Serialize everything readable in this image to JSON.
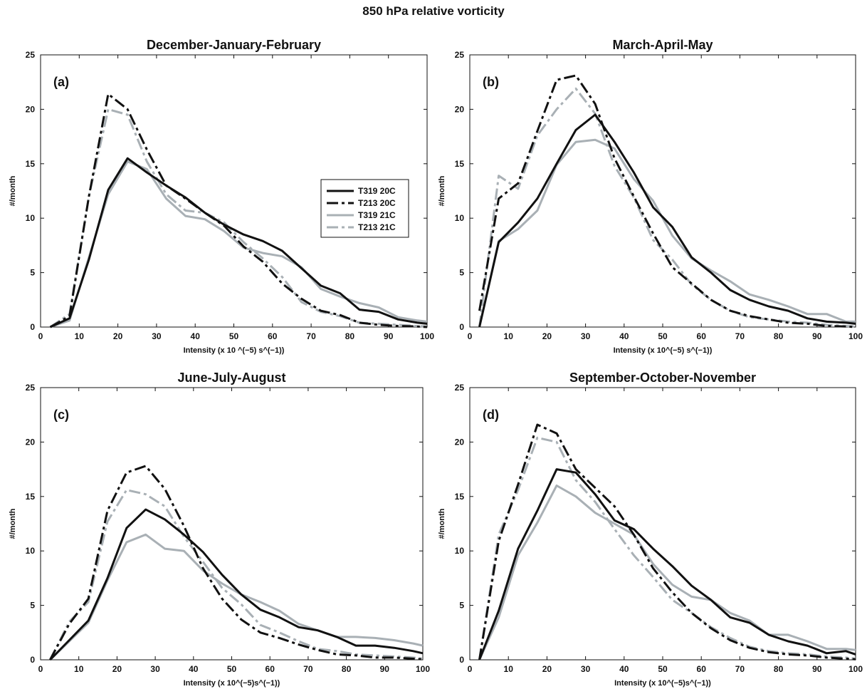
{
  "figure": {
    "title": "850 hPa relative vorticity"
  },
  "colors": {
    "dark": "#111111",
    "light": "#a9b0b5"
  },
  "legend": [
    {
      "name": "T319 20C",
      "color": "#111111",
      "dash": "solid"
    },
    {
      "name": "T213 20C",
      "color": "#111111",
      "dash": "dashdot"
    },
    {
      "name": "T319 21C",
      "color": "#a9b0b5",
      "dash": "solid"
    },
    {
      "name": "T213 21C",
      "color": "#a9b0b5",
      "dash": "dashdot"
    }
  ],
  "chart_data": [
    {
      "type": "line",
      "title": "December-January-February",
      "panel_label": "(a)",
      "xlabel": "Intensity (x 10 ^(−5) s^(−1))",
      "ylabel": "#/month",
      "xlim": [
        0,
        100
      ],
      "ylim": [
        0,
        25
      ],
      "xticks": [
        0,
        10,
        20,
        30,
        40,
        50,
        60,
        70,
        80,
        90,
        100
      ],
      "yticks": [
        0,
        5,
        10,
        15,
        20,
        25
      ],
      "legend_location": "right-middle",
      "x": [
        2.5,
        7.5,
        12.5,
        17.5,
        22.5,
        27.5,
        32.5,
        37.5,
        42.5,
        47.5,
        52.5,
        57.5,
        62.5,
        67.5,
        72.5,
        77.5,
        82.5,
        87.5,
        92.5,
        97.5,
        100
      ],
      "series": [
        {
          "name": "T319 20C",
          "values": [
            0,
            0.8,
            6.2,
            12.6,
            15.5,
            14.2,
            13.0,
            11.9,
            10.5,
            9.4,
            8.5,
            7.9,
            7.0,
            5.4,
            3.8,
            3.1,
            1.6,
            1.4,
            0.7,
            0.4,
            0.3
          ]
        },
        {
          "name": "T213 20C",
          "values": [
            0,
            1.0,
            12.0,
            21.4,
            20.0,
            16.3,
            13.0,
            11.8,
            10.5,
            9.3,
            7.4,
            6.0,
            4.0,
            2.6,
            1.5,
            1.1,
            0.4,
            0.2,
            0.1,
            0.05,
            0.0
          ]
        },
        {
          "name": "T319 21C",
          "values": [
            0,
            0.6,
            6.4,
            12.2,
            15.2,
            14.5,
            11.8,
            10.2,
            9.9,
            8.8,
            7.3,
            6.8,
            6.5,
            5.5,
            3.5,
            2.8,
            2.2,
            1.8,
            0.9,
            0.6,
            0.5
          ]
        },
        {
          "name": "T213 21C",
          "values": [
            0,
            1.2,
            12.0,
            20.0,
            19.5,
            15.2,
            12.2,
            10.7,
            10.5,
            9.6,
            7.8,
            6.3,
            4.6,
            2.3,
            1.4,
            1.0,
            0.4,
            0.3,
            0.2,
            0.1,
            0.05
          ]
        }
      ]
    },
    {
      "type": "line",
      "title": "March-April-May",
      "panel_label": "(b)",
      "xlabel": "Intensity (x 10^(−5) s^(−1))",
      "ylabel": "#/month",
      "xlim": [
        0,
        100
      ],
      "ylim": [
        0,
        25
      ],
      "xticks": [
        0,
        10,
        20,
        30,
        40,
        50,
        60,
        70,
        80,
        90,
        100
      ],
      "yticks": [
        0,
        5,
        10,
        15,
        20,
        25
      ],
      "x": [
        2.5,
        7.5,
        12.5,
        17.5,
        22.5,
        27.5,
        32.5,
        37.5,
        42.5,
        47.5,
        52.5,
        57.5,
        62.5,
        67.5,
        72.5,
        77.5,
        82.5,
        87.5,
        92.5,
        97.5,
        100
      ],
      "series": [
        {
          "name": "T319 20C",
          "values": [
            0,
            7.8,
            9.6,
            11.8,
            15.0,
            18.1,
            19.5,
            17.0,
            14.2,
            11.0,
            9.2,
            6.4,
            5.0,
            3.4,
            2.5,
            1.9,
            1.5,
            0.8,
            0.5,
            0.4,
            0.3
          ]
        },
        {
          "name": "T213 20C",
          "values": [
            1.5,
            11.8,
            13.2,
            18.0,
            22.7,
            23.1,
            20.5,
            15.5,
            12.0,
            8.6,
            5.5,
            4.0,
            2.5,
            1.5,
            1.0,
            0.7,
            0.4,
            0.3,
            0.1,
            0.05,
            0.0
          ]
        },
        {
          "name": "T319 21C",
          "values": [
            0,
            7.9,
            9.0,
            10.7,
            14.9,
            17.0,
            17.2,
            16.4,
            13.6,
            11.6,
            8.4,
            6.3,
            5.2,
            4.2,
            3.0,
            2.5,
            1.9,
            1.2,
            1.2,
            0.5,
            0.5
          ]
        },
        {
          "name": "T213 21C",
          "values": [
            0,
            13.9,
            12.7,
            17.6,
            20.0,
            21.9,
            19.6,
            14.8,
            11.9,
            8.0,
            6.2,
            3.9,
            2.5,
            1.5,
            0.9,
            0.7,
            0.5,
            0.4,
            0.2,
            0.1,
            0.05
          ]
        }
      ]
    },
    {
      "type": "line",
      "title": "June-July-August",
      "panel_label": "(c)",
      "xlabel": "Intensity (x 10^(−5)s^(−1))",
      "ylabel": "#/month",
      "xlim": [
        0,
        100
      ],
      "ylim": [
        0,
        25
      ],
      "xticks": [
        0,
        10,
        20,
        30,
        40,
        50,
        60,
        70,
        80,
        90,
        100
      ],
      "yticks": [
        0,
        5,
        10,
        15,
        20,
        25
      ],
      "x": [
        2.5,
        7.5,
        12.5,
        17.5,
        22.5,
        27.5,
        32.5,
        37.5,
        42.5,
        47.5,
        52.5,
        57.5,
        62.5,
        67.5,
        72.5,
        77.5,
        82.5,
        87.5,
        92.5,
        97.5,
        100
      ],
      "series": [
        {
          "name": "T319 20C",
          "values": [
            0,
            1.8,
            3.6,
            7.5,
            12.1,
            13.8,
            12.9,
            11.5,
            9.9,
            7.8,
            6.0,
            4.6,
            3.9,
            3.0,
            2.7,
            2.1,
            1.3,
            1.3,
            1.1,
            0.8,
            0.6
          ]
        },
        {
          "name": "T213 20C",
          "values": [
            0,
            3.3,
            5.6,
            13.7,
            17.2,
            17.8,
            15.7,
            12.3,
            8.4,
            5.6,
            3.7,
            2.5,
            2.0,
            1.4,
            0.9,
            0.5,
            0.4,
            0.2,
            0.2,
            0.1,
            0.05
          ]
        },
        {
          "name": "T319 21C",
          "values": [
            0,
            1.7,
            3.4,
            7.3,
            10.8,
            11.5,
            10.2,
            10.0,
            8.2,
            7.0,
            6.0,
            5.3,
            4.5,
            3.3,
            2.7,
            2.1,
            2.1,
            2.0,
            1.8,
            1.5,
            1.3
          ]
        },
        {
          "name": "T213 21C",
          "values": [
            0,
            3.5,
            5.3,
            12.7,
            15.6,
            15.2,
            14.1,
            11.3,
            9.0,
            6.6,
            5.1,
            3.2,
            2.5,
            1.7,
            1.0,
            0.8,
            0.5,
            0.4,
            0.3,
            0.2,
            0.1
          ]
        }
      ]
    },
    {
      "type": "line",
      "title": "September-October-November",
      "panel_label": "(d)",
      "xlabel": "Intensity (x 10^(−5)s^(−1))",
      "ylabel": "#/month",
      "xlim": [
        0,
        100
      ],
      "ylim": [
        0,
        25
      ],
      "xticks": [
        0,
        10,
        20,
        30,
        40,
        50,
        60,
        70,
        80,
        90,
        100
      ],
      "yticks": [
        0,
        5,
        10,
        15,
        20,
        25
      ],
      "x": [
        2.5,
        7.5,
        12.5,
        17.5,
        22.5,
        27.5,
        32.5,
        37.5,
        42.5,
        47.5,
        52.5,
        57.5,
        62.5,
        67.5,
        72.5,
        77.5,
        82.5,
        87.5,
        92.5,
        97.5,
        100
      ],
      "series": [
        {
          "name": "T319 20C",
          "values": [
            0,
            4.5,
            10.2,
            13.7,
            17.5,
            17.2,
            15.2,
            12.8,
            12.0,
            10.2,
            8.6,
            6.8,
            5.5,
            3.9,
            3.4,
            2.3,
            1.7,
            1.3,
            0.6,
            0.8,
            0.5
          ]
        },
        {
          "name": "T213 20C",
          "values": [
            0,
            10.9,
            16.1,
            21.6,
            20.8,
            17.5,
            15.8,
            14.1,
            11.5,
            8.4,
            6.2,
            4.3,
            2.9,
            1.8,
            1.1,
            0.7,
            0.5,
            0.4,
            0.2,
            0.1,
            0.05
          ]
        },
        {
          "name": "T319 21C",
          "values": [
            0,
            3.9,
            9.6,
            12.6,
            16.0,
            15.0,
            13.5,
            12.5,
            11.5,
            8.8,
            6.9,
            5.8,
            5.5,
            4.3,
            3.6,
            2.3,
            2.3,
            1.7,
            1.0,
            1.0,
            0.9
          ]
        },
        {
          "name": "T213 21C",
          "values": [
            0,
            11.5,
            15.6,
            20.4,
            20.0,
            16.5,
            14.5,
            12.0,
            9.6,
            7.6,
            5.5,
            4.3,
            3.0,
            2.0,
            1.2,
            0.8,
            0.6,
            0.5,
            0.3,
            0.2,
            0.1
          ]
        }
      ]
    }
  ]
}
